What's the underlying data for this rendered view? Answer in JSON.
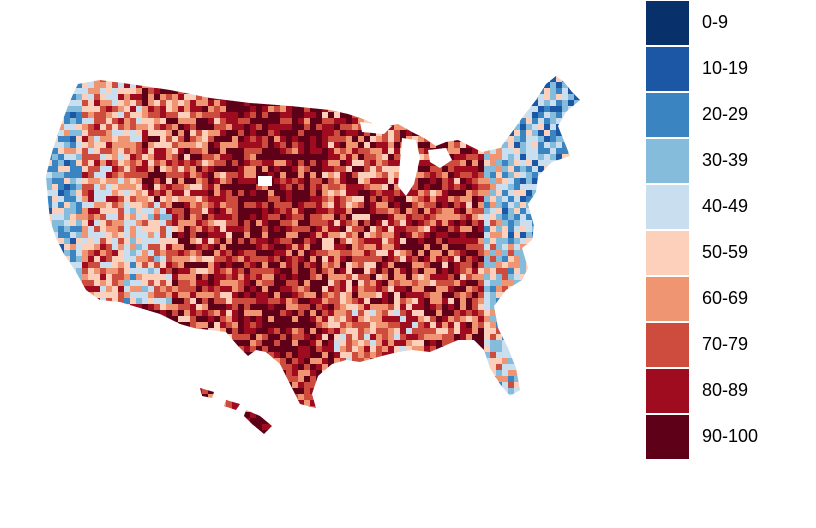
{
  "legend": {
    "items": [
      {
        "label": "0-9",
        "color": "#08306b"
      },
      {
        "label": "10-19",
        "color": "#1c57a5"
      },
      {
        "label": "20-29",
        "color": "#3a84c1"
      },
      {
        "label": "30-39",
        "color": "#85bcdc"
      },
      {
        "label": "40-49",
        "color": "#c9deee"
      },
      {
        "label": "50-59",
        "color": "#fcd0bb"
      },
      {
        "label": "60-69",
        "color": "#ef9571"
      },
      {
        "label": "70-79",
        "color": "#cd4c3e"
      },
      {
        "label": "80-89",
        "color": "#a00c1f"
      },
      {
        "label": "90-100",
        "color": "#5e0017"
      }
    ]
  },
  "map": {
    "region": "contiguous-us-with-hawaii",
    "pattern_seed": 7
  }
}
